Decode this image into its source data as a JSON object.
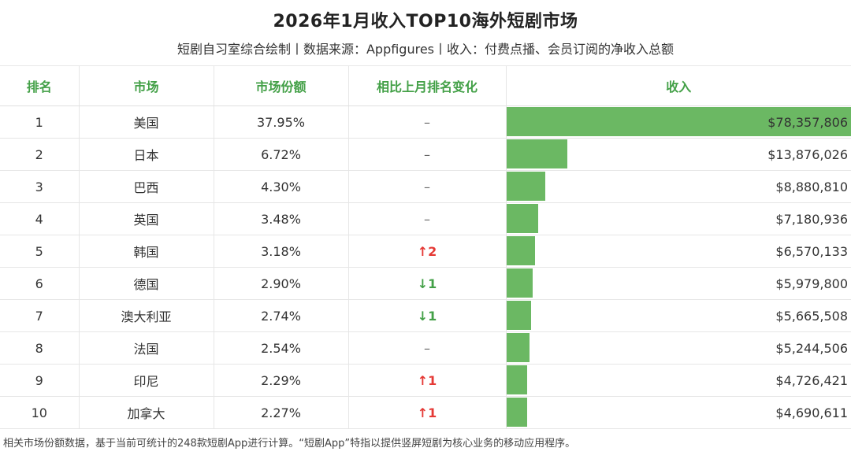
{
  "title": "2026年1月收入TOP10海外短剧市场",
  "subtitle": "短剧自习室综合绘制丨数据来源：Appfigures丨收入：付费点播、会员订阅的净收入总额",
  "footnote": "相关市场份额数据，基于当前可统计的248款短剧App进行计算。“短剧App”特指以提供竖屏短剧为核心业务的移动应用程序。",
  "colors": {
    "header_text": "#43a047",
    "bar": "#6bb863",
    "up": "#e53935",
    "down": "#43a047"
  },
  "chart_data": {
    "type": "table",
    "columns": [
      "排名",
      "市场",
      "市场份额",
      "相比上月排名变化",
      "收入"
    ],
    "rows": [
      {
        "rank": "1",
        "market": "美国",
        "share": "37.95%",
        "change": "–",
        "change_dir": "same",
        "revenue": "$78,357,806",
        "revenue_value": 78357806
      },
      {
        "rank": "2",
        "market": "日本",
        "share": "6.72%",
        "change": "–",
        "change_dir": "same",
        "revenue": "$13,876,026",
        "revenue_value": 13876026
      },
      {
        "rank": "3",
        "market": "巴西",
        "share": "4.30%",
        "change": "–",
        "change_dir": "same",
        "revenue": "$8,880,810",
        "revenue_value": 8880810
      },
      {
        "rank": "4",
        "market": "英国",
        "share": "3.48%",
        "change": "–",
        "change_dir": "same",
        "revenue": "$7,180,936",
        "revenue_value": 7180936
      },
      {
        "rank": "5",
        "market": "韩国",
        "share": "3.18%",
        "change": "↑2",
        "change_dir": "up",
        "revenue": "$6,570,133",
        "revenue_value": 6570133
      },
      {
        "rank": "6",
        "market": "德国",
        "share": "2.90%",
        "change": "↓1",
        "change_dir": "down",
        "revenue": "$5,979,800",
        "revenue_value": 5979800
      },
      {
        "rank": "7",
        "market": "澳大利亚",
        "share": "2.74%",
        "change": "↓1",
        "change_dir": "down",
        "revenue": "$5,665,508",
        "revenue_value": 5665508
      },
      {
        "rank": "8",
        "market": "法国",
        "share": "2.54%",
        "change": "–",
        "change_dir": "same",
        "revenue": "$5,244,506",
        "revenue_value": 5244506
      },
      {
        "rank": "9",
        "market": "印尼",
        "share": "2.29%",
        "change": "↑1",
        "change_dir": "up",
        "revenue": "$4,726,421",
        "revenue_value": 4726421
      },
      {
        "rank": "10",
        "market": "加拿大",
        "share": "2.27%",
        "change": "↑1",
        "change_dir": "up",
        "revenue": "$4,690,611",
        "revenue_value": 4690611
      }
    ]
  }
}
